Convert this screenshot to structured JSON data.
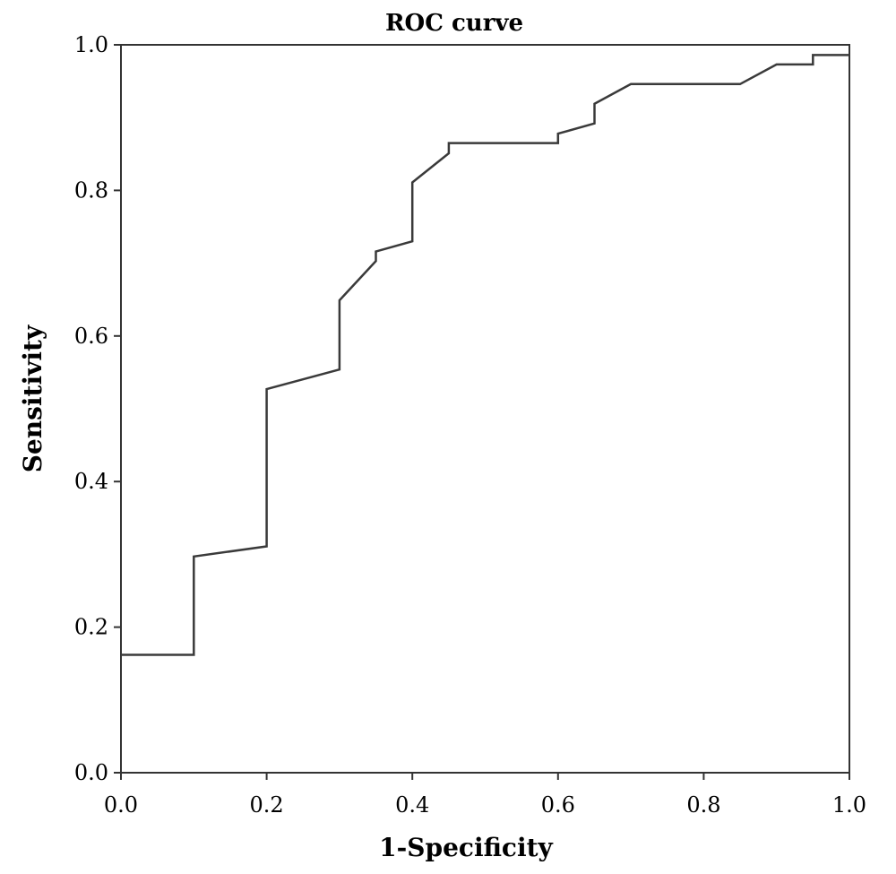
{
  "chart_data": {
    "type": "line",
    "title": "ROC curve",
    "xlabel": "1-Specificity",
    "ylabel": "Sensitivity",
    "xlim": [
      0.0,
      1.0
    ],
    "ylim": [
      0.0,
      1.0
    ],
    "x_ticks": [
      "0.0",
      "0.2",
      "0.4",
      "0.6",
      "0.8",
      "1.0"
    ],
    "y_ticks": [
      "0.0",
      "0.2",
      "0.4",
      "0.6",
      "0.8",
      "1.0"
    ],
    "grid": false,
    "legend": "none",
    "line_color": "#3a3a3a",
    "series": [
      {
        "points": [
          [
            0.0,
            0.162
          ],
          [
            0.1,
            0.162
          ],
          [
            0.1,
            0.297
          ],
          [
            0.2,
            0.311
          ],
          [
            0.2,
            0.527
          ],
          [
            0.3,
            0.554
          ],
          [
            0.3,
            0.649
          ],
          [
            0.35,
            0.703
          ],
          [
            0.35,
            0.716
          ],
          [
            0.4,
            0.73
          ],
          [
            0.4,
            0.811
          ],
          [
            0.45,
            0.851
          ],
          [
            0.45,
            0.865
          ],
          [
            0.6,
            0.865
          ],
          [
            0.6,
            0.878
          ],
          [
            0.65,
            0.892
          ],
          [
            0.65,
            0.919
          ],
          [
            0.7,
            0.946
          ],
          [
            0.85,
            0.946
          ],
          [
            0.9,
            0.973
          ],
          [
            0.95,
            0.973
          ],
          [
            0.95,
            0.986
          ],
          [
            1.0,
            0.986
          ]
        ]
      }
    ]
  }
}
